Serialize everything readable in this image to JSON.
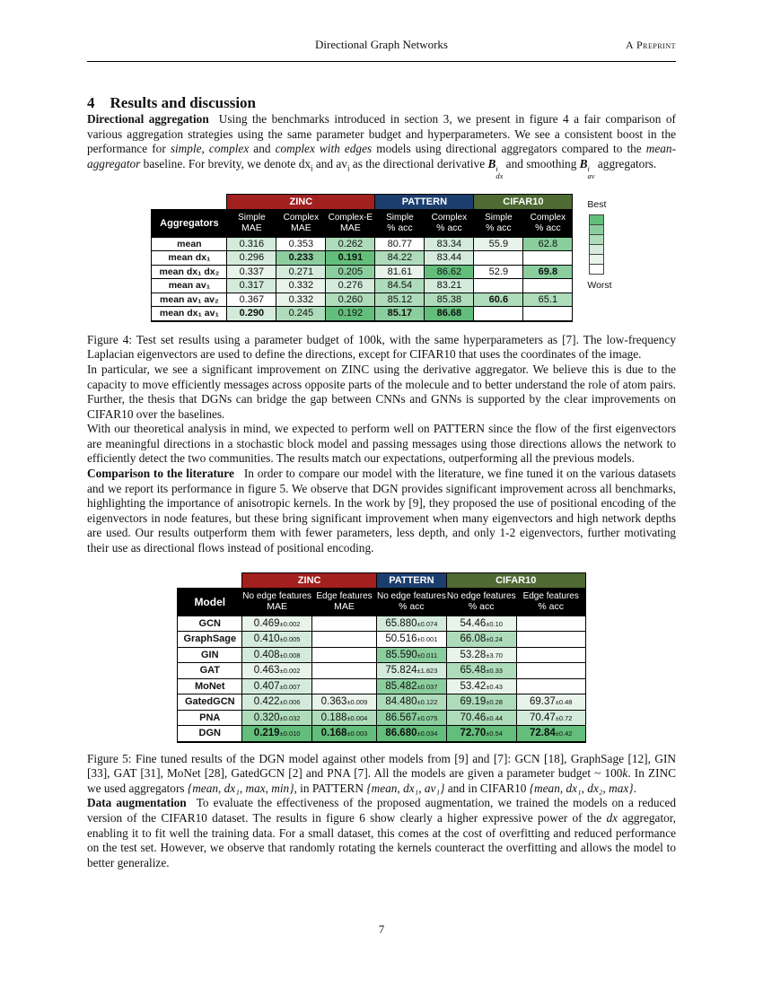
{
  "page": {
    "running_head_center": "Directional Graph Networks",
    "running_head_right": "A Preprint",
    "page_number": "7"
  },
  "section": {
    "number": "4",
    "title": "Results and discussion"
  },
  "p_aggregation": {
    "lead": "Directional aggregation",
    "r1": "Using the benchmarks introduced in section 3, we present in figure 4 a fair comparison of various aggregation strategies using the same parameter budget and hyperparameters. We see a consistent boost in the performance for ",
    "e1": "simple",
    "r2": ", ",
    "e2": "complex",
    "r3": " and ",
    "e3": "complex with edges",
    "r4": " models using directional aggregators compared to the ",
    "e4": "mean-aggregator",
    "r5": " baseline. For brevity, we denote dx",
    "sub1": "i",
    "r6": " and av",
    "sub2": "i",
    "r7": " as the directional derivative ",
    "math1": {
      "base": "B",
      "sup": "i",
      "sub": "dx"
    },
    "r8": " and smoothing ",
    "math2": {
      "base": "B",
      "sup": "i",
      "sub": "av"
    },
    "r9": " aggregators."
  },
  "colors": {
    "zinc_banner": "#A2201E",
    "pattern_banner": "#1C3E6E",
    "cifar_banner": "#4F6A32",
    "header_bg": "#000000",
    "heat": [
      "#FFFFFF",
      "#E8F3EA",
      "#D4EBDB",
      "#AEDCBB",
      "#8BCE9E",
      "#63BE7B"
    ]
  },
  "figure4_table": {
    "corner_label": "Aggregators",
    "groups": [
      {
        "label": "ZINC",
        "span": 3,
        "color": "#A2201E"
      },
      {
        "label": "PATTERN",
        "span": 2,
        "color": "#1C3E6E"
      },
      {
        "label": "CIFAR10",
        "span": 2,
        "color": "#4F6A32"
      }
    ],
    "columns": [
      {
        "l1": "Simple",
        "l2": "MAE"
      },
      {
        "l1": "Complex",
        "l2": "MAE"
      },
      {
        "l1": "Complex-E",
        "l2": "MAE"
      },
      {
        "l1": "Simple",
        "l2": "% acc"
      },
      {
        "l1": "Complex",
        "l2": "% acc"
      },
      {
        "l1": "Simple",
        "l2": "% acc"
      },
      {
        "l1": "Complex",
        "l2": "% acc"
      }
    ],
    "rows": [
      {
        "label": "mean",
        "cells": [
          {
            "t": "0.316",
            "s": 2
          },
          {
            "t": "0.353",
            "s": 0
          },
          {
            "t": "0.262",
            "s": 3
          },
          {
            "t": "80.77",
            "s": 0
          },
          {
            "t": "83.34",
            "s": 2
          },
          {
            "t": "55.9",
            "s": 1
          },
          {
            "t": "62.8",
            "s": 4
          }
        ]
      },
      {
        "label": "mean dx₁",
        "cells": [
          {
            "t": "0.296",
            "s": 2
          },
          {
            "t": "0.233",
            "s": 4,
            "b": true
          },
          {
            "t": "0.191",
            "s": 5,
            "b": true
          },
          {
            "t": "84.22",
            "s": 3
          },
          {
            "t": "83.44",
            "s": 2
          },
          {
            "t": "",
            "s": 0
          },
          {
            "t": "",
            "s": 0
          }
        ]
      },
      {
        "label": "mean dx₁ dx₂",
        "cells": [
          {
            "t": "0.337",
            "s": 1
          },
          {
            "t": "0.271",
            "s": 2
          },
          {
            "t": "0.205",
            "s": 4
          },
          {
            "t": "81.61",
            "s": 1
          },
          {
            "t": "86.62",
            "s": 5
          },
          {
            "t": "52.9",
            "s": 0
          },
          {
            "t": "69.8",
            "s": 4,
            "b": true
          }
        ]
      },
      {
        "label": "mean av₁",
        "cells": [
          {
            "t": "0.317",
            "s": 2
          },
          {
            "t": "0.332",
            "s": 1
          },
          {
            "t": "0.276",
            "s": 2
          },
          {
            "t": "84.54",
            "s": 3
          },
          {
            "t": "83.21",
            "s": 2
          },
          {
            "t": "",
            "s": 0
          },
          {
            "t": "",
            "s": 0
          }
        ]
      },
      {
        "label": "mean av₁ av₂",
        "cells": [
          {
            "t": "0.367",
            "s": 0
          },
          {
            "t": "0.332",
            "s": 1
          },
          {
            "t": "0.260",
            "s": 3
          },
          {
            "t": "85.12",
            "s": 3
          },
          {
            "t": "85.38",
            "s": 3
          },
          {
            "t": "60.6",
            "s": 3,
            "b": true
          },
          {
            "t": "65.1",
            "s": 3
          }
        ]
      },
      {
        "label": "mean dx₁ av₁",
        "cells": [
          {
            "t": "0.290",
            "s": 2,
            "b": true
          },
          {
            "t": "0.245",
            "s": 3
          },
          {
            "t": "0.192",
            "s": 5
          },
          {
            "t": "85.17",
            "s": 4,
            "b": true
          },
          {
            "t": "86.68",
            "s": 5,
            "b": true
          },
          {
            "t": "",
            "s": 0
          },
          {
            "t": "",
            "s": 0
          }
        ]
      }
    ],
    "legend_best": "Best",
    "legend_worst": "Worst"
  },
  "figure4_caption": "Figure 4: Test set results using a parameter budget of 100k, with the same hyperparameters as [7]. The low-frequency Laplacian eigenvectors are used to define the directions, except for CIFAR10 that uses the coordinates of the image.",
  "p_zinc": "In particular, we see a significant improvement on ZINC using the derivative aggregator. We believe this is due to the capacity to move efficiently messages across opposite parts of the molecule and to better understand the role of atom pairs. Further, the thesis that DGNs can bridge the gap between CNNs and GNNs is supported by the clear improvements on CIFAR10 over the baselines.",
  "p_pattern": "With our theoretical analysis in mind, we expected to perform well on PATTERN since the flow of the first eigenvectors are meaningful directions in a stochastic block model and passing messages using those directions allows the network to efficiently detect the two communities. The results match our expectations, outperforming all the previous models.",
  "p_literature": {
    "lead": "Comparison to the literature",
    "r1": "In order to compare our model with the literature, we fine tuned it on the various datasets and we report its performance in figure 5. We observe that DGN provides significant improvement across all benchmarks, highlighting the importance of anisotropic kernels. In the work by [9], they proposed the use of positional encoding of the eigenvectors in node features, but these bring significant improvement when many eigenvectors and high network depths are used. Our results outperform them with fewer parameters, less depth, and only 1-2 eigenvectors, further motivating their use as directional flows instead of positional encoding."
  },
  "figure5_table": {
    "corner_label": "Model",
    "groups": [
      {
        "label": "ZINC",
        "span": 2,
        "color": "#A2201E"
      },
      {
        "label": "PATTERN",
        "span": 1,
        "color": "#1C3E6E"
      },
      {
        "label": "CIFAR10",
        "span": 2,
        "color": "#4F6A32"
      }
    ],
    "columns": [
      {
        "l1": "No edge features",
        "l2": "MAE"
      },
      {
        "l1": "Edge features",
        "l2": "MAE"
      },
      {
        "l1": "No edge features",
        "l2": "% acc"
      },
      {
        "l1": "No edge features",
        "l2": "% acc"
      },
      {
        "l1": "Edge features",
        "l2": "% acc"
      }
    ],
    "rows": [
      {
        "label": "GCN",
        "cells": [
          {
            "t": "0.469",
            "pm": "±0.002",
            "s": 1
          },
          {
            "t": "",
            "s": 0
          },
          {
            "t": "65.880",
            "pm": "±0.074",
            "s": 2
          },
          {
            "t": "54.46",
            "pm": "±0.10",
            "s": 1
          },
          {
            "t": "",
            "s": 0
          }
        ]
      },
      {
        "label": "GraphSage",
        "cells": [
          {
            "t": "0.410",
            "pm": "±0.005",
            "s": 2
          },
          {
            "t": "",
            "s": 0
          },
          {
            "t": "50.516",
            "pm": "±0.001",
            "s": 0
          },
          {
            "t": "66.08",
            "pm": "±0.24",
            "s": 3
          },
          {
            "t": "",
            "s": 0
          }
        ]
      },
      {
        "label": "GIN",
        "cells": [
          {
            "t": "0.408",
            "pm": "±0.008",
            "s": 2
          },
          {
            "t": "",
            "s": 0
          },
          {
            "t": "85.590",
            "pm": "±0.011",
            "s": 4
          },
          {
            "t": "53.28",
            "pm": "±3.70",
            "s": 1
          },
          {
            "t": "",
            "s": 0
          }
        ]
      },
      {
        "label": "GAT",
        "cells": [
          {
            "t": "0.463",
            "pm": "±0.002",
            "s": 1
          },
          {
            "t": "",
            "s": 0
          },
          {
            "t": "75.824",
            "pm": "±1.823",
            "s": 2
          },
          {
            "t": "65.48",
            "pm": "±0.33",
            "s": 3
          },
          {
            "t": "",
            "s": 0
          }
        ]
      },
      {
        "label": "MoNet",
        "cells": [
          {
            "t": "0.407",
            "pm": "±0.007",
            "s": 2
          },
          {
            "t": "",
            "s": 0
          },
          {
            "t": "85.482",
            "pm": "±0.037",
            "s": 4
          },
          {
            "t": "53.42",
            "pm": "±0.43",
            "s": 1
          },
          {
            "t": "",
            "s": 0
          }
        ]
      },
      {
        "label": "GatedGCN",
        "cells": [
          {
            "t": "0.422",
            "pm": "±0.006",
            "s": 2
          },
          {
            "t": "0.363",
            "pm": "±0.009",
            "s": 1
          },
          {
            "t": "84.480",
            "pm": "±0.122",
            "s": 3
          },
          {
            "t": "69.19",
            "pm": "±0.28",
            "s": 3
          },
          {
            "t": "69.37",
            "pm": "±0.48",
            "s": 1
          }
        ]
      },
      {
        "label": "PNA",
        "cells": [
          {
            "t": "0.320",
            "pm": "±0.032",
            "s": 3
          },
          {
            "t": "0.188",
            "pm": "±0.004",
            "s": 3
          },
          {
            "t": "86.567",
            "pm": "±0.075",
            "s": 4
          },
          {
            "t": "70.46",
            "pm": "±0.44",
            "s": 3
          },
          {
            "t": "70.47",
            "pm": "±0.72",
            "s": 2
          }
        ]
      },
      {
        "label": "DGN",
        "cells": [
          {
            "t": "0.219",
            "pm": "±0.010",
            "s": 5,
            "b": true
          },
          {
            "t": "0.168",
            "pm": "±0.003",
            "s": 5,
            "b": true
          },
          {
            "t": "86.680",
            "pm": "±0.034",
            "s": 5,
            "b": true
          },
          {
            "t": "72.70",
            "pm": "±0.54",
            "s": 5,
            "b": true
          },
          {
            "t": "72.84",
            "pm": "±0.42",
            "s": 5,
            "b": true
          }
        ]
      }
    ]
  },
  "figure5_caption": {
    "r1": "Figure 5: Fine tuned results of the DGN model against other models from [9] and [7]: GCN [18], GraphSage [12], GIN [33], GAT [31], MoNet [28], GatedGCN [2] and PNA [7]. All the models are given a parameter budget ~ 100",
    "e1": "k",
    "r2": ". In ZINC we used aggregators ",
    "e2": "{mean, dx₁, max, min}",
    "r3": ", in PATTERN ",
    "e3": "{mean, dx₁, av₁}",
    "r4": " and in CIFAR10 ",
    "e4": "{mean, dx₁, dx₂, max}",
    "r5": "."
  },
  "p_augmentation": {
    "lead": "Data augmentation",
    "r1": "To evaluate the effectiveness of the proposed augmentation, we trained the models on a reduced version of the CIFAR10 dataset. The results in figure 6 show clearly a higher expressive power of the ",
    "e1": "dx",
    "r2": " aggregator, enabling it to fit well the training data. For a small dataset, this comes at the cost of overfitting and reduced performance on the test set. However, we observe that randomly rotating the kernels counteract the overfitting and allows the model to better generalize."
  }
}
